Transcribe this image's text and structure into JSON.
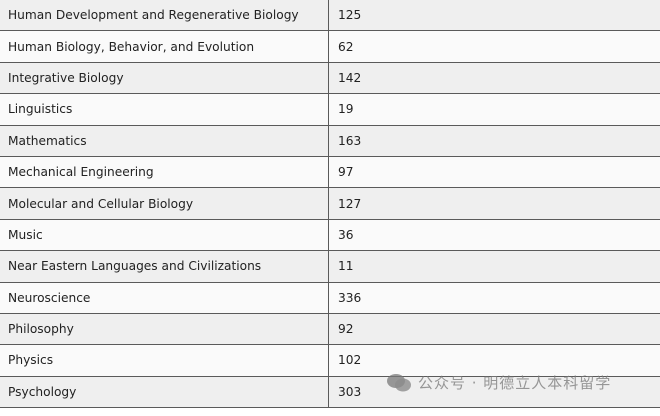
{
  "table": {
    "rows": [
      {
        "program": "Human Development and Regenerative Biology",
        "count": "125"
      },
      {
        "program": "Human Biology, Behavior, and Evolution",
        "count": "62"
      },
      {
        "program": "Integrative Biology",
        "count": "142"
      },
      {
        "program": "Linguistics",
        "count": "19"
      },
      {
        "program": "Mathematics",
        "count": "163"
      },
      {
        "program": "Mechanical Engineering",
        "count": "97"
      },
      {
        "program": "Molecular and Cellular Biology",
        "count": "127"
      },
      {
        "program": "Music",
        "count": "36"
      },
      {
        "program": "Near Eastern Languages and Civilizations",
        "count": "11"
      },
      {
        "program": "Neuroscience",
        "count": "336"
      },
      {
        "program": "Philosophy",
        "count": "92"
      },
      {
        "program": "Physics",
        "count": "102"
      },
      {
        "program": "Psychology",
        "count": "303"
      }
    ]
  },
  "watermark": {
    "icon": "wechat-icon",
    "text": "公众号 · 明德立人本科留学"
  }
}
